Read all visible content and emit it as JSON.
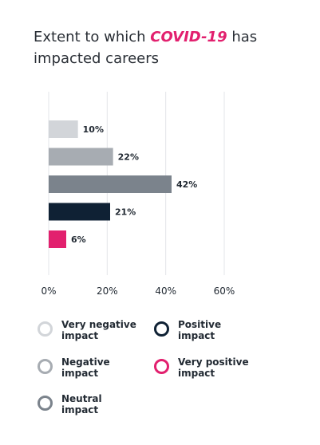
{
  "title": {
    "prefix": "Extent to which ",
    "highlight": "COVID-19",
    "suffix": " has impacted careers"
  },
  "chart_data": {
    "type": "bar",
    "orientation": "horizontal",
    "categories": [
      "Very negative impact",
      "Negative impact",
      "Neutral impact",
      "Positive impact",
      "Very positive impact"
    ],
    "values": [
      10,
      22,
      42,
      21,
      6
    ],
    "value_labels": [
      "10%",
      "22%",
      "42%",
      "21%",
      "6%"
    ],
    "colors": [
      "#d2d5d9",
      "#a7acb2",
      "#7b838c",
      "#0f2134",
      "#e2206e"
    ],
    "xlim": [
      0,
      60
    ],
    "xticks": [
      0,
      20,
      40,
      60
    ],
    "xtick_labels": [
      "0%",
      "20%",
      "40%",
      "60%"
    ],
    "grid": true,
    "legend_position": "bottom"
  },
  "legend": [
    {
      "label": "Very negative impact",
      "color": "#d2d5d9"
    },
    {
      "label": "Negative impact",
      "color": "#a7acb2"
    },
    {
      "label": "Neutral impact",
      "color": "#7b838c"
    },
    {
      "label": "Positive impact",
      "color": "#0f2134"
    },
    {
      "label": "Very positive impact",
      "color": "#e2206e"
    }
  ]
}
